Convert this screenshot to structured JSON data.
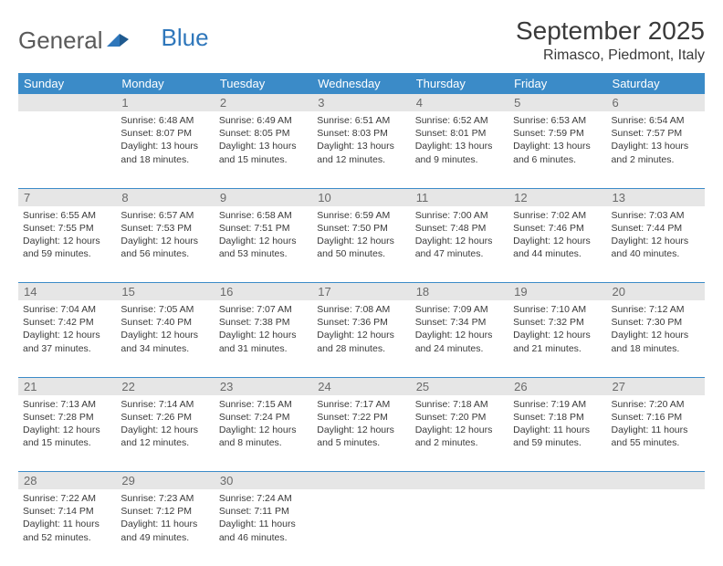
{
  "brand": {
    "part1": "General",
    "part2": "Blue"
  },
  "title": "September 2025",
  "location": "Rimasco, Piedmont, Italy",
  "colors": {
    "header_bg": "#3b8bc8",
    "header_text": "#ffffff",
    "daynum_bg": "#e6e6e6",
    "daynum_text": "#6a6a6a",
    "body_text": "#3a3a3a",
    "rule": "#3b8bc8",
    "logo_blue": "#2f77bb"
  },
  "weekdays": [
    "Sunday",
    "Monday",
    "Tuesday",
    "Wednesday",
    "Thursday",
    "Friday",
    "Saturday"
  ],
  "weeks": [
    {
      "nums": [
        "",
        "1",
        "2",
        "3",
        "4",
        "5",
        "6"
      ],
      "cells": [
        null,
        {
          "sunrise": "6:48 AM",
          "sunset": "8:07 PM",
          "daylight": "13 hours and 18 minutes."
        },
        {
          "sunrise": "6:49 AM",
          "sunset": "8:05 PM",
          "daylight": "13 hours and 15 minutes."
        },
        {
          "sunrise": "6:51 AM",
          "sunset": "8:03 PM",
          "daylight": "13 hours and 12 minutes."
        },
        {
          "sunrise": "6:52 AM",
          "sunset": "8:01 PM",
          "daylight": "13 hours and 9 minutes."
        },
        {
          "sunrise": "6:53 AM",
          "sunset": "7:59 PM",
          "daylight": "13 hours and 6 minutes."
        },
        {
          "sunrise": "6:54 AM",
          "sunset": "7:57 PM",
          "daylight": "13 hours and 2 minutes."
        }
      ]
    },
    {
      "nums": [
        "7",
        "8",
        "9",
        "10",
        "11",
        "12",
        "13"
      ],
      "cells": [
        {
          "sunrise": "6:55 AM",
          "sunset": "7:55 PM",
          "daylight": "12 hours and 59 minutes."
        },
        {
          "sunrise": "6:57 AM",
          "sunset": "7:53 PM",
          "daylight": "12 hours and 56 minutes."
        },
        {
          "sunrise": "6:58 AM",
          "sunset": "7:51 PM",
          "daylight": "12 hours and 53 minutes."
        },
        {
          "sunrise": "6:59 AM",
          "sunset": "7:50 PM",
          "daylight": "12 hours and 50 minutes."
        },
        {
          "sunrise": "7:00 AM",
          "sunset": "7:48 PM",
          "daylight": "12 hours and 47 minutes."
        },
        {
          "sunrise": "7:02 AM",
          "sunset": "7:46 PM",
          "daylight": "12 hours and 44 minutes."
        },
        {
          "sunrise": "7:03 AM",
          "sunset": "7:44 PM",
          "daylight": "12 hours and 40 minutes."
        }
      ]
    },
    {
      "nums": [
        "14",
        "15",
        "16",
        "17",
        "18",
        "19",
        "20"
      ],
      "cells": [
        {
          "sunrise": "7:04 AM",
          "sunset": "7:42 PM",
          "daylight": "12 hours and 37 minutes."
        },
        {
          "sunrise": "7:05 AM",
          "sunset": "7:40 PM",
          "daylight": "12 hours and 34 minutes."
        },
        {
          "sunrise": "7:07 AM",
          "sunset": "7:38 PM",
          "daylight": "12 hours and 31 minutes."
        },
        {
          "sunrise": "7:08 AM",
          "sunset": "7:36 PM",
          "daylight": "12 hours and 28 minutes."
        },
        {
          "sunrise": "7:09 AM",
          "sunset": "7:34 PM",
          "daylight": "12 hours and 24 minutes."
        },
        {
          "sunrise": "7:10 AM",
          "sunset": "7:32 PM",
          "daylight": "12 hours and 21 minutes."
        },
        {
          "sunrise": "7:12 AM",
          "sunset": "7:30 PM",
          "daylight": "12 hours and 18 minutes."
        }
      ]
    },
    {
      "nums": [
        "21",
        "22",
        "23",
        "24",
        "25",
        "26",
        "27"
      ],
      "cells": [
        {
          "sunrise": "7:13 AM",
          "sunset": "7:28 PM",
          "daylight": "12 hours and 15 minutes."
        },
        {
          "sunrise": "7:14 AM",
          "sunset": "7:26 PM",
          "daylight": "12 hours and 12 minutes."
        },
        {
          "sunrise": "7:15 AM",
          "sunset": "7:24 PM",
          "daylight": "12 hours and 8 minutes."
        },
        {
          "sunrise": "7:17 AM",
          "sunset": "7:22 PM",
          "daylight": "12 hours and 5 minutes."
        },
        {
          "sunrise": "7:18 AM",
          "sunset": "7:20 PM",
          "daylight": "12 hours and 2 minutes."
        },
        {
          "sunrise": "7:19 AM",
          "sunset": "7:18 PM",
          "daylight": "11 hours and 59 minutes."
        },
        {
          "sunrise": "7:20 AM",
          "sunset": "7:16 PM",
          "daylight": "11 hours and 55 minutes."
        }
      ]
    },
    {
      "nums": [
        "28",
        "29",
        "30",
        "",
        "",
        "",
        ""
      ],
      "cells": [
        {
          "sunrise": "7:22 AM",
          "sunset": "7:14 PM",
          "daylight": "11 hours and 52 minutes."
        },
        {
          "sunrise": "7:23 AM",
          "sunset": "7:12 PM",
          "daylight": "11 hours and 49 minutes."
        },
        {
          "sunrise": "7:24 AM",
          "sunset": "7:11 PM",
          "daylight": "11 hours and 46 minutes."
        },
        null,
        null,
        null,
        null
      ]
    }
  ],
  "labels": {
    "sunrise": "Sunrise:",
    "sunset": "Sunset:",
    "daylight": "Daylight:"
  }
}
